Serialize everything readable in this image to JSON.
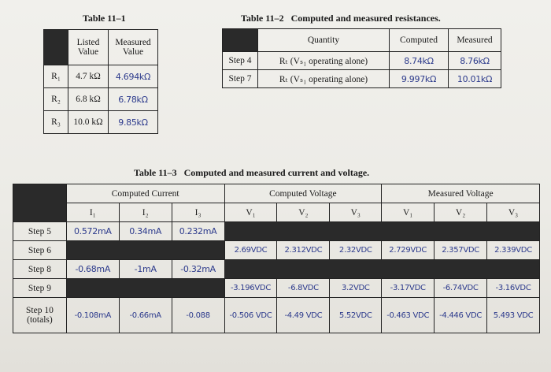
{
  "table1": {
    "caption": "Table 11–1",
    "headers": [
      "Listed Value",
      "Measured Value"
    ],
    "rows": [
      {
        "label": "R₁",
        "listed": "4.7 kΩ",
        "measured": "4.694kΩ"
      },
      {
        "label": "R₂",
        "listed": "6.8 kΩ",
        "measured": "6.78kΩ"
      },
      {
        "label": "R₃",
        "listed": "10.0 kΩ",
        "measured": "9.85kΩ"
      }
    ]
  },
  "table2": {
    "caption": "Table 11–2   Computed and measured resistances.",
    "headers": [
      "Quantity",
      "Computed",
      "Measured"
    ],
    "rows": [
      {
        "step": "Step 4",
        "quantity": "Rₜ (Vₛ₁ operating alone)",
        "computed": "8.74kΩ",
        "measured": "8.76kΩ"
      },
      {
        "step": "Step 7",
        "quantity": "Rₜ (Vₛ₁ operating alone)",
        "computed": "9.997kΩ",
        "measured": "10.01kΩ"
      }
    ]
  },
  "table3": {
    "caption": "Table 11–3   Computed and measured current and voltage.",
    "groups": [
      "Computed Current",
      "Computed Voltage",
      "Measured Voltage"
    ],
    "subheaders": [
      "I₁",
      "I₂",
      "I₃",
      "V₁",
      "V₂",
      "V₃",
      "V₁",
      "V₂",
      "V₃"
    ],
    "rows": [
      {
        "label": "Step 5",
        "current": [
          "0.572mA",
          "0.34mA",
          "0.232mA"
        ]
      },
      {
        "label": "Step 6",
        "voltage": [
          "2.69VDC",
          "2.312VDC",
          "2.32VDC"
        ],
        "measured": [
          "2.729VDC",
          "2.357VDC",
          "2.339VDC"
        ]
      },
      {
        "label": "Step 8",
        "current": [
          "-0.68mA",
          "-1mA",
          "-0.32mA"
        ]
      },
      {
        "label": "Step 9",
        "voltage": [
          "-3.196VDC",
          "-6.8VDC",
          "3.2VDC"
        ],
        "measured": [
          "-3.17VDC",
          "-6.74VDC",
          "-3.16VDC"
        ]
      },
      {
        "label": "Step 10 (totals)",
        "current": [
          "-0.108mA",
          "-0.66mA",
          "-0.088"
        ],
        "voltage": [
          "-0.506 VDC",
          "-4.49 VDC",
          "5.52VDC"
        ],
        "measured": [
          "-0.463 VDC",
          "-4.446 VDC",
          "5.493 VDC"
        ]
      }
    ]
  }
}
